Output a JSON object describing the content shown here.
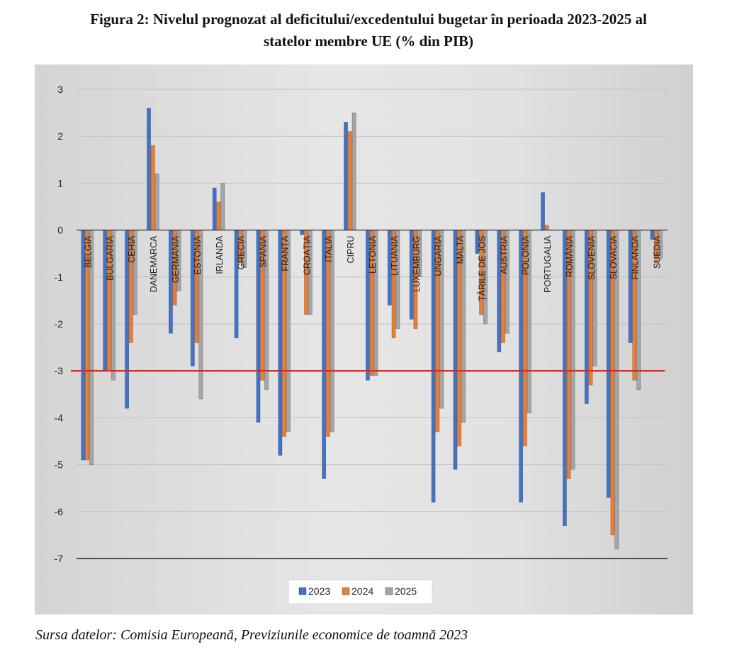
{
  "figure": {
    "title_line1": "Figura 2: Nivelul prognozat al deficitului/excedentului bugetar în perioada 2023-2025 al",
    "title_line2": "statelor membre UE (% din PIB)",
    "source": "Sursa datelor: Comisia Europeană, Previziunile economice de toamnă 2023"
  },
  "chart_data": {
    "type": "bar",
    "categories": [
      "BELGIA",
      "BULGARIA",
      "CEHIA",
      "DANEMARCA",
      "GERMANIA",
      "ESTONIA",
      "IRLANDA",
      "GRECIA",
      "SPANIA",
      "FRANȚA",
      "CROAȚIA",
      "ITALIA",
      "CIPRU",
      "LETONIA",
      "LITUANIA",
      "LUXEMBURG",
      "UNGARIA",
      "MALTA",
      "ȚĂRILE DE JOS",
      "AUSTRIA",
      "POLONIA",
      "PORTUGALIA",
      "ROMÂNIA",
      "SLOVENIA",
      "SLOVACIA",
      "FINLANDA",
      "SUEDIA"
    ],
    "series": [
      {
        "name": "2023",
        "color": "#4472c4",
        "values": [
          -4.9,
          -3.0,
          -3.8,
          2.6,
          -2.2,
          -2.9,
          0.9,
          -2.3,
          -4.1,
          -4.8,
          -0.1,
          -5.3,
          2.3,
          -3.2,
          -1.6,
          -1.9,
          -5.8,
          -5.1,
          -0.5,
          -2.6,
          -5.8,
          0.8,
          -6.3,
          -3.7,
          -5.7,
          -2.4,
          -0.2
        ]
      },
      {
        "name": "2024",
        "color": "#ed7d31",
        "values": [
          -4.9,
          -3.0,
          -2.4,
          1.8,
          -1.6,
          -2.4,
          0.6,
          -0.7,
          -3.2,
          -4.4,
          -1.8,
          -4.4,
          2.1,
          -3.1,
          -2.3,
          -2.1,
          -4.3,
          -4.6,
          -1.8,
          -2.4,
          -4.6,
          0.1,
          -5.3,
          -3.3,
          -6.5,
          -3.2,
          -0.7
        ]
      },
      {
        "name": "2025",
        "color": "#a5a5a5",
        "values": [
          -5.0,
          -3.2,
          -1.8,
          1.2,
          -1.3,
          -3.6,
          1.0,
          -0.8,
          -3.4,
          -4.3,
          -1.8,
          -4.3,
          2.5,
          -3.1,
          -2.1,
          -1.0,
          -3.8,
          -4.1,
          -2.0,
          -2.2,
          -3.9,
          0.0,
          -5.1,
          -2.9,
          -6.8,
          -3.4,
          -0.6
        ]
      }
    ],
    "y_ticks": [
      "3",
      "2",
      "1",
      "0",
      "-1",
      "-2",
      "-3",
      "-4",
      "-5",
      "-6",
      "-7"
    ],
    "ylim": [
      -7,
      3
    ],
    "reference_line": {
      "value": -3,
      "color": "#e8251a"
    },
    "grid": true,
    "legend_position": "bottom",
    "legend_labels": [
      "2023",
      "2024",
      "2025"
    ]
  }
}
